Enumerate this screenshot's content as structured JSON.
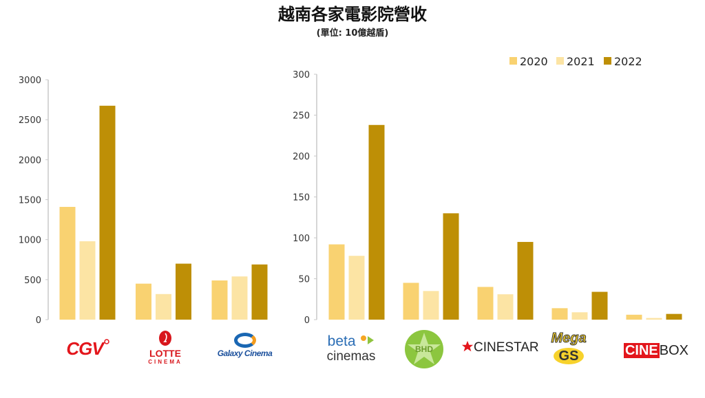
{
  "title": "越南各家電影院營收",
  "subtitle": "(單位: 10億越盾)",
  "colors": {
    "2020": "#F9D271",
    "2021": "#FCE4A4",
    "2022": "#BE8F06"
  },
  "chart_data": [
    {
      "type": "bar",
      "categories": [
        "CGV",
        "LOTTE CINEMA",
        "Galaxy Cinema"
      ],
      "series": [
        {
          "name": "2020",
          "values": [
            1410,
            450,
            490
          ]
        },
        {
          "name": "2021",
          "values": [
            980,
            320,
            540
          ]
        },
        {
          "name": "2022",
          "values": [
            2675,
            700,
            690
          ]
        }
      ],
      "ylim": [
        0,
        3000
      ],
      "yticks": [
        "0",
        "500",
        "1000",
        "1500",
        "2000",
        "2500",
        "3000"
      ],
      "grid": false
    },
    {
      "type": "bar",
      "categories": [
        "beta cinemas",
        "BHD",
        "CINESTAR",
        "Mega GS",
        "CINEBOX"
      ],
      "series": [
        {
          "name": "2020",
          "values": [
            92,
            45,
            40,
            14,
            6
          ]
        },
        {
          "name": "2021",
          "values": [
            78,
            35,
            31,
            9,
            2
          ]
        },
        {
          "name": "2022",
          "values": [
            238,
            130,
            95,
            34,
            7
          ]
        }
      ],
      "ylim": [
        0,
        300
      ],
      "yticks": [
        "0",
        "50",
        "100",
        "150",
        "200",
        "250",
        "300"
      ],
      "grid": false,
      "legend": "top-right"
    }
  ],
  "logos": [
    "CGV",
    "LOTTE",
    "CINEMA",
    "Galaxy Cinema",
    "beta",
    "cinemas",
    "BHD",
    "CINESTAR",
    "Mega",
    "GS",
    "CINE",
    "BOX"
  ]
}
